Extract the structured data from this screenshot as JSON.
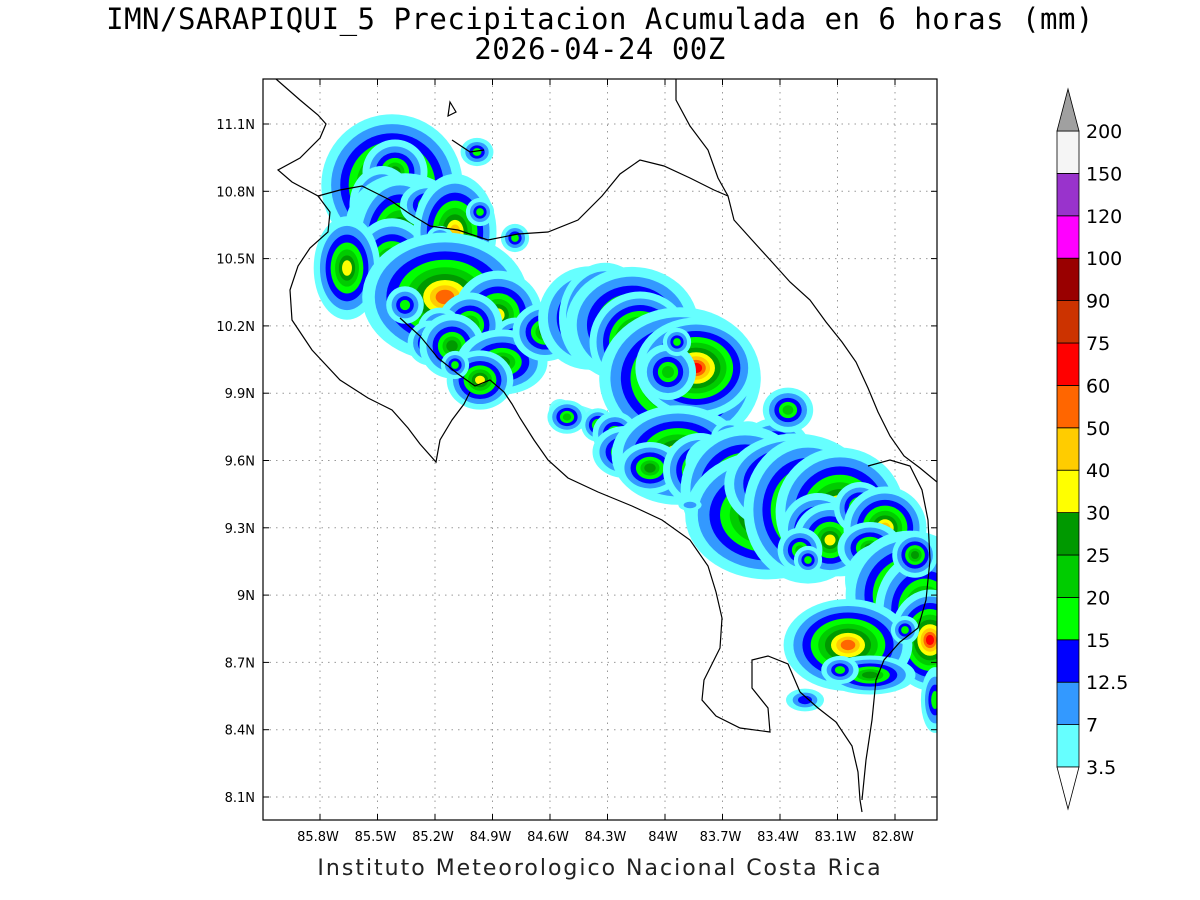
{
  "title": {
    "line1": "IMN/SARAPIQUI_5 Precipitacion Acumulada en 6 horas (mm)",
    "line2": "2026-04-24 00Z"
  },
  "footer": "Instituto Meteorologico Nacional Costa Rica",
  "map": {
    "lon_ticks": [
      "85.8W",
      "85.5W",
      "85.2W",
      "84.9W",
      "84.6W",
      "84.3W",
      "84W",
      "83.7W",
      "83.4W",
      "83.1W",
      "82.8W"
    ],
    "lat_ticks": [
      "11.1N",
      "10.8N",
      "10.5N",
      "10.2N",
      "9.9N",
      "9.6N",
      "9.3N",
      "9N",
      "8.7N",
      "8.4N",
      "8.1N"
    ],
    "grid": true
  },
  "colorbar": {
    "levels": [
      {
        "label": "3.5",
        "color": "#66ffff"
      },
      {
        "label": "7",
        "color": "#3399ff"
      },
      {
        "label": "12.5",
        "color": "#0000ff"
      },
      {
        "label": "15",
        "color": "#00ff00"
      },
      {
        "label": "20",
        "color": "#00cc00"
      },
      {
        "label": "25",
        "color": "#009900"
      },
      {
        "label": "30",
        "color": "#ffff00"
      },
      {
        "label": "40",
        "color": "#ffcc00"
      },
      {
        "label": "50",
        "color": "#ff6600"
      },
      {
        "label": "60",
        "color": "#ff0000"
      },
      {
        "label": "75",
        "color": "#cc3300"
      },
      {
        "label": "90",
        "color": "#990000"
      },
      {
        "label": "100",
        "color": "#ff00ff"
      },
      {
        "label": "120",
        "color": "#9933cc"
      },
      {
        "label": "150",
        "color": "#f5f5f5"
      },
      {
        "label": "200",
        "color": "#a0a0a0"
      }
    ],
    "top_color": "#a0a0a0",
    "bottom_color": "#ffffff"
  }
}
